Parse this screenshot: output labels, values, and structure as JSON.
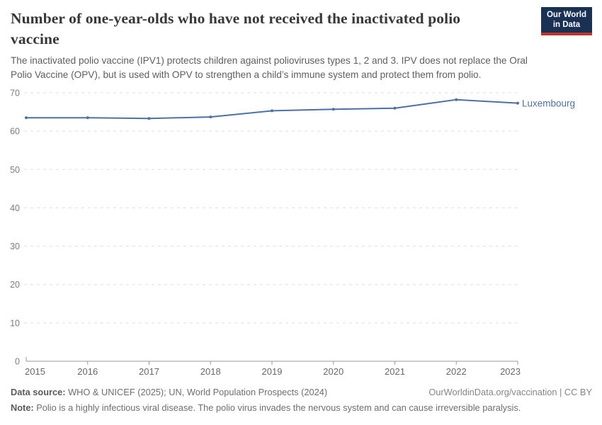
{
  "header": {
    "title": "Number of one-year-olds who have not received the inactivated polio vaccine",
    "title_lines": [
      "Number of one-year-olds who have not received the inactivated polio",
      "vaccine"
    ],
    "subtitle": "The inactivated polio vaccine (IPV1) protects children against polioviruses types 1, 2 and 3. IPV does not replace the Oral Polio Vaccine (OPV), but is used with OPV to strengthen a child’s immune system and protect them from polio.",
    "subtitle_lines": [
      "The inactivated polio vaccine (IPV1) protects children against polioviruses types 1, 2 and 3. IPV does not replace the Oral",
      "Polio Vaccine (OPV), but is used with OPV to strengthen a child’s immune system and protect them from polio."
    ],
    "logo": {
      "line1": "Our World",
      "line2": "in Data",
      "bg_color": "#1a3156",
      "accent_color": "#c0342b"
    }
  },
  "chart_data": {
    "type": "line",
    "title": "Number of one-year-olds who have not received the inactivated polio vaccine",
    "x": [
      2015,
      2016,
      2017,
      2018,
      2019,
      2020,
      2021,
      2022,
      2023
    ],
    "xticks": [
      2015,
      2016,
      2017,
      2018,
      2019,
      2020,
      2021,
      2022,
      2023
    ],
    "yticks": [
      0,
      10,
      20,
      30,
      40,
      50,
      60,
      70
    ],
    "ylim": [
      0,
      70
    ],
    "xlabel": "",
    "ylabel": "",
    "grid": "horizontal-dashed",
    "legend_position": "line-end-label",
    "series": [
      {
        "name": "Luxembourg",
        "color": "#4c70a9",
        "values": [
          63.5,
          63.5,
          63.3,
          63.7,
          65.3,
          65.7,
          66.0,
          68.2,
          67.3
        ]
      }
    ]
  },
  "footer": {
    "datasource_label": "Data source:",
    "datasource_text": " WHO & UNICEF (2025); UN, World Population Prospects (2024)",
    "credit": "OurWorldinData.org/vaccination | CC BY",
    "note_label": "Note:",
    "note_text": " Polio is a highly infectious viral disease. The polio virus invades the nervous system and can cause irreversible paralysis."
  },
  "colors": {
    "grid": "#dedede",
    "axis": "#9a9a9a",
    "xtick_label": "#676767",
    "ytick_label": "#7d7d7d"
  }
}
